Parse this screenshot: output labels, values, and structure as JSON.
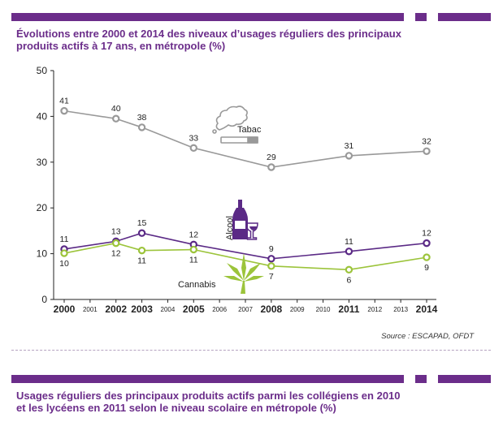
{
  "title1": {
    "line1": "Évolutions entre 2000 et 2014 des niveaux d’usages réguliers des principaux",
    "line2": "produits actifs à 17 ans, en métropole (%)"
  },
  "source": "Source : ESCAPAD, OFDT",
  "title2": {
    "line1": "Usages réguliers des principaux produits actifs parmi les collégiens en 2010",
    "line2": "et les lycéens en 2011 selon le niveau scolaire en métropole (%)"
  },
  "colors": {
    "accent": "#6b2d8a",
    "tabac": "#999999",
    "alcool": "#5b2a86",
    "cannabis": "#9cc43b"
  },
  "chart_data": {
    "type": "line",
    "ylim": [
      0,
      50
    ],
    "yticks": [
      0,
      10,
      20,
      30,
      40,
      50
    ],
    "xlim": [
      2000,
      2014
    ],
    "xticks": [
      {
        "year": 2000,
        "label": "2000",
        "major": true
      },
      {
        "year": 2001,
        "label": "2001",
        "major": false
      },
      {
        "year": 2002,
        "label": "2002",
        "major": true
      },
      {
        "year": 2003,
        "label": "2003",
        "major": true
      },
      {
        "year": 2004,
        "label": "2004",
        "major": false
      },
      {
        "year": 2005,
        "label": "2005",
        "major": true
      },
      {
        "year": 2006,
        "label": "2006",
        "major": false
      },
      {
        "year": 2007,
        "label": "2007",
        "major": false
      },
      {
        "year": 2008,
        "label": "2008",
        "major": true
      },
      {
        "year": 2009,
        "label": "2009",
        "major": false
      },
      {
        "year": 2010,
        "label": "2010",
        "major": false
      },
      {
        "year": 2011,
        "label": "2011",
        "major": true
      },
      {
        "year": 2012,
        "label": "2012",
        "major": false
      },
      {
        "year": 2013,
        "label": "2013",
        "major": false
      },
      {
        "year": 2014,
        "label": "2014",
        "major": true
      }
    ],
    "series": [
      {
        "name": "Tabac",
        "color": "#999999",
        "label_side": "above",
        "x": [
          2000,
          2002,
          2003,
          2005,
          2008,
          2011,
          2014
        ],
        "y": [
          41.2,
          39.5,
          37.6,
          33.1,
          28.9,
          31.4,
          32.4
        ],
        "labels": [
          "41",
          "40",
          "38",
          "33",
          "29",
          "31",
          "32"
        ]
      },
      {
        "name": "Alcool",
        "color": "#5b2a86",
        "label_side": "above",
        "x": [
          2000,
          2002,
          2003,
          2005,
          2008,
          2011,
          2014
        ],
        "y": [
          11.0,
          12.7,
          14.5,
          12.0,
          8.9,
          10.5,
          12.3
        ],
        "labels": [
          "11",
          "13",
          "15",
          "12",
          "9",
          "11",
          "12"
        ]
      },
      {
        "name": "Cannabis",
        "color": "#9cc43b",
        "label_side": "below",
        "x": [
          2000,
          2002,
          2003,
          2005,
          2008,
          2011,
          2014
        ],
        "y": [
          10.1,
          12.3,
          10.7,
          10.9,
          7.3,
          6.5,
          9.2
        ],
        "labels": [
          "10",
          "12",
          "11",
          "11",
          "7",
          "6",
          "9"
        ]
      }
    ]
  }
}
